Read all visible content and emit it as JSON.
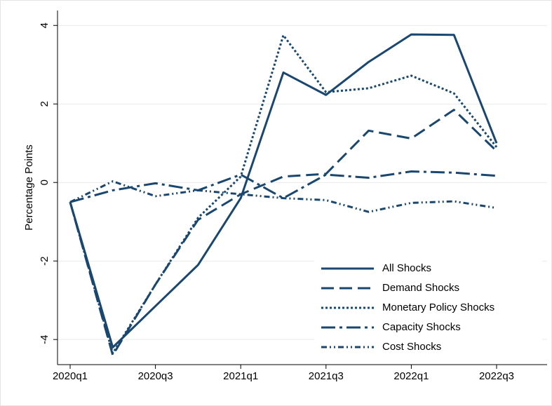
{
  "chart_data": {
    "type": "line",
    "y_label": "Percentage Points",
    "categories": [
      "2020q1",
      null,
      "2020q3",
      null,
      "2021q1",
      null,
      "2021q3",
      null,
      "2022q1",
      null,
      "2022q3"
    ],
    "series": [
      {
        "name": "All Shocks",
        "color": "#1a476f",
        "values": [
          -0.5,
          -4.2,
          -3.15,
          -2.1,
          -0.4,
          2.8,
          2.23,
          3.07,
          3.77,
          3.76,
          1.0
        ]
      },
      {
        "name": "Demand Shocks",
        "color": "#1a476f",
        "values": [
          -0.5,
          -4.4,
          -2.6,
          -0.95,
          -0.3,
          0.15,
          0.22,
          1.32,
          1.12,
          1.85,
          0.8
        ]
      },
      {
        "name": "Monetary Policy Shocks",
        "color": "#1a476f",
        "values": [
          -0.5,
          -4.35,
          -2.6,
          -0.9,
          0.15,
          3.75,
          2.3,
          2.4,
          2.72,
          2.27,
          0.9
        ]
      },
      {
        "name": "Capacity Shocks",
        "color": "#1a476f",
        "values": [
          -0.5,
          -0.2,
          -0.02,
          -0.2,
          0.2,
          -0.4,
          0.2,
          0.12,
          0.28,
          0.25,
          0.17
        ]
      },
      {
        "name": "Cost Shocks",
        "color": "#1a476f",
        "values": [
          -0.5,
          0.03,
          -0.35,
          -0.2,
          -0.3,
          -0.4,
          -0.45,
          -0.75,
          -0.52,
          -0.48,
          -0.65
        ]
      }
    ],
    "ylim": [
      -4.64,
      4.38
    ],
    "yticks": [
      -4,
      -2,
      0,
      2,
      4
    ],
    "grid": true,
    "legend": "bottom-right"
  }
}
